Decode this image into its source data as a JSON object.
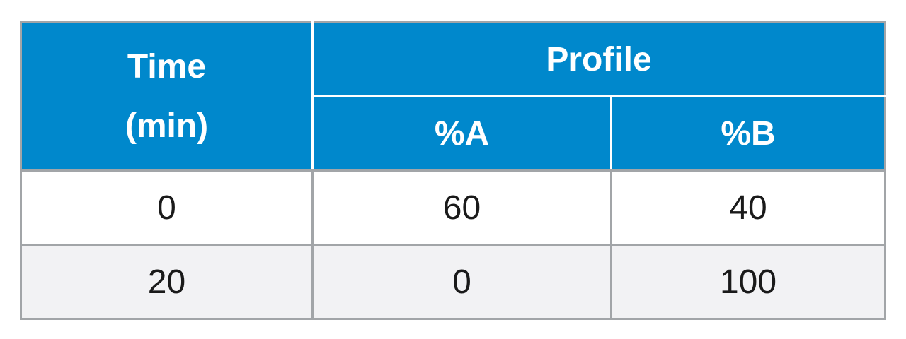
{
  "header": {
    "time": "Time (min)",
    "profile": "Profile",
    "columns": [
      "%A",
      "%B"
    ]
  },
  "table": {
    "rows": [
      [
        0,
        60,
        40
      ],
      [
        20,
        0,
        100
      ]
    ]
  }
}
